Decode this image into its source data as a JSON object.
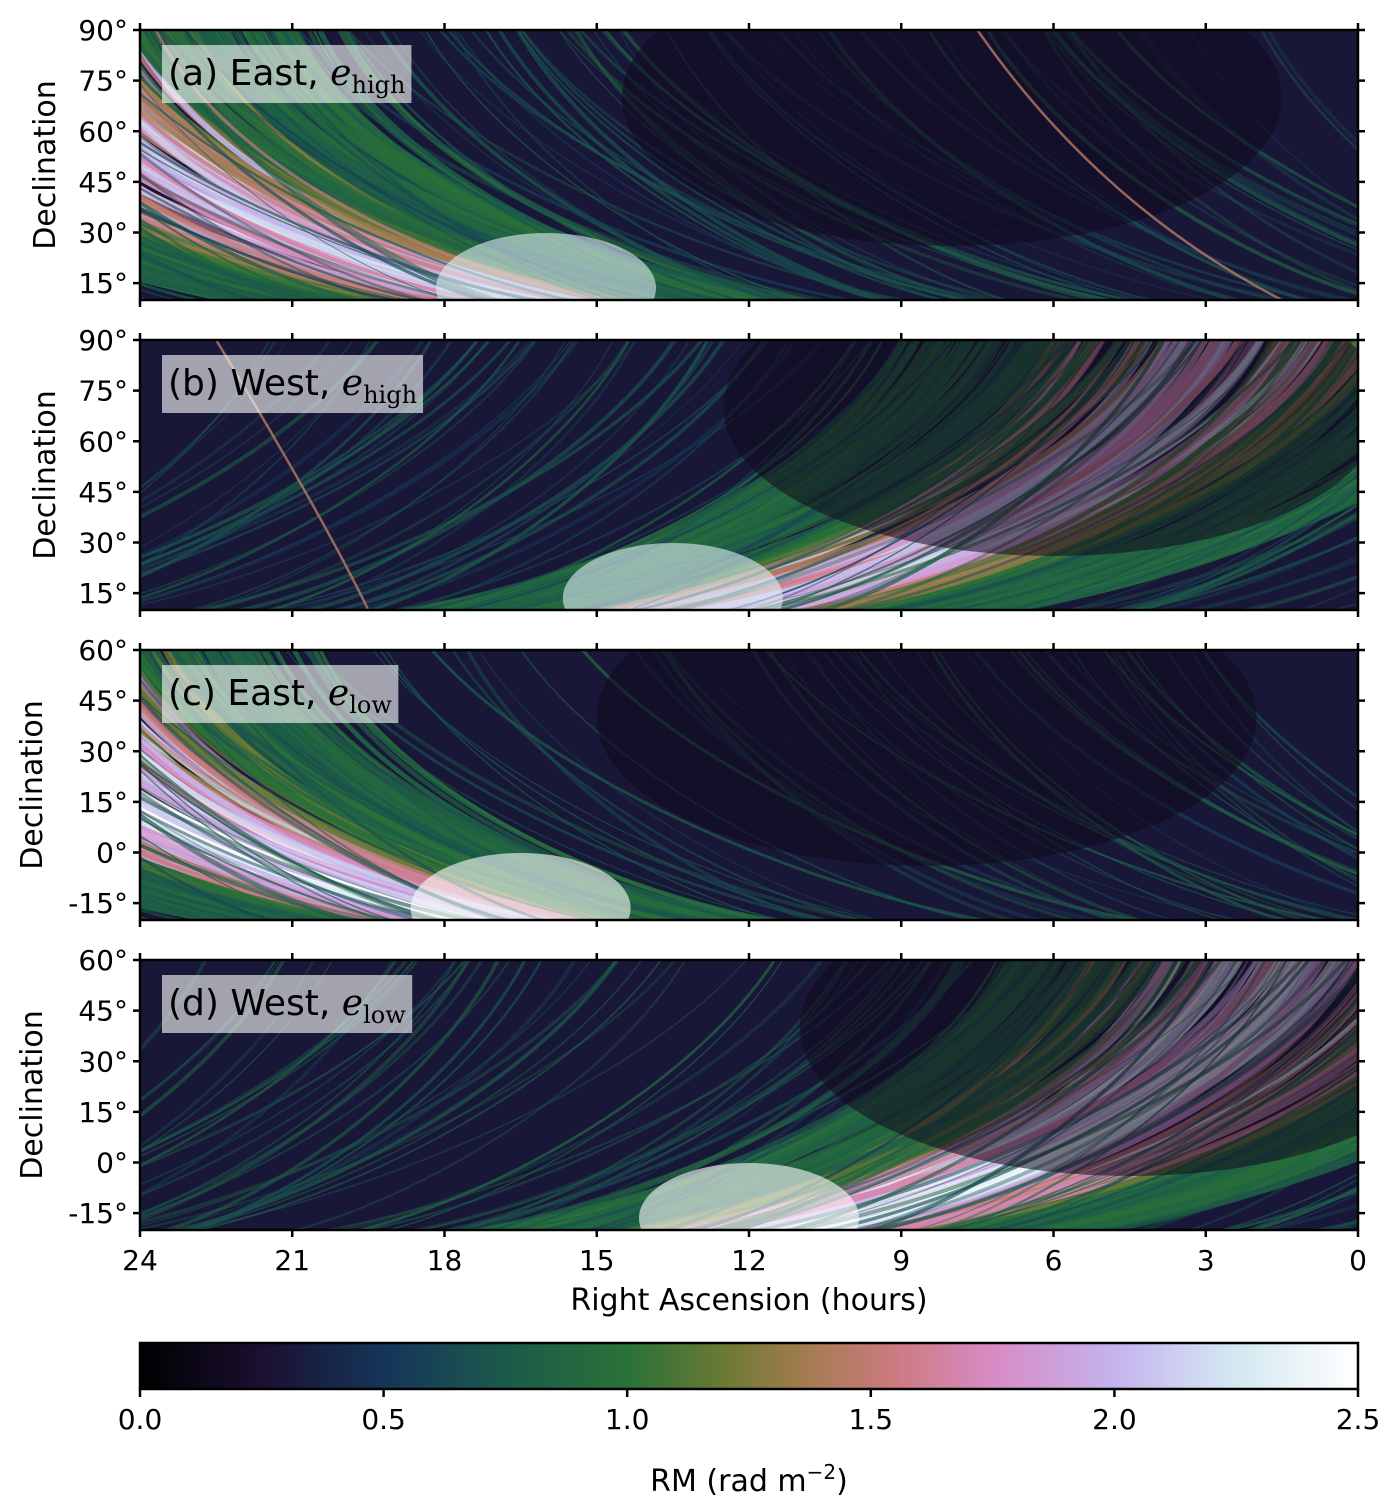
{
  "chart_data": [
    {
      "type": "heatmap",
      "panel": "a",
      "title_prefix": "(a) East, ",
      "title_var": "e",
      "title_sub": "high",
      "ylabel": "Declination",
      "ylim": [
        10,
        90
      ],
      "yticks": [
        15,
        30,
        45,
        60,
        75,
        90
      ],
      "ytick_labels": [
        "15°",
        "30°",
        "45°",
        "60°",
        "75°",
        "90°"
      ],
      "xlim": [
        24,
        0
      ],
      "xticks": [
        24,
        21,
        18,
        15,
        12,
        9,
        6,
        3,
        0
      ],
      "direction": "east",
      "peak": {
        "ra_hours": 16.0,
        "dec_deg": 10,
        "rm": 2.2
      },
      "secondary_streak": {
        "from_ra": 7.5,
        "to_ra": 1.5
      }
    },
    {
      "type": "heatmap",
      "panel": "b",
      "title_prefix": "(b) West, ",
      "title_var": "e",
      "title_sub": "high",
      "ylabel": "Declination",
      "ylim": [
        10,
        90
      ],
      "yticks": [
        15,
        30,
        45,
        60,
        75,
        90
      ],
      "ytick_labels": [
        "15°",
        "30°",
        "45°",
        "60°",
        "75°",
        "90°"
      ],
      "xlim": [
        24,
        0
      ],
      "xticks": [
        24,
        21,
        18,
        15,
        12,
        9,
        6,
        3,
        0
      ],
      "direction": "west",
      "peak": {
        "ra_hours": 13.5,
        "dec_deg": 10,
        "rm": 2.2
      },
      "secondary_streak": {
        "from_ra": 22.5,
        "to_ra": 19.5
      }
    },
    {
      "type": "heatmap",
      "panel": "c",
      "title_prefix": "(c) East, ",
      "title_var": "e",
      "title_sub": "low",
      "ylabel": "Declination",
      "ylim": [
        -20,
        60
      ],
      "yticks": [
        -15,
        0,
        15,
        30,
        45,
        60
      ],
      "ytick_labels": [
        "-15°",
        "0°",
        "15°",
        "30°",
        "45°",
        "60°"
      ],
      "xlim": [
        24,
        0
      ],
      "xticks": [
        24,
        21,
        18,
        15,
        12,
        9,
        6,
        3,
        0
      ],
      "direction": "east",
      "peak": {
        "ra_hours": 16.5,
        "dec_deg": -20,
        "rm": 2.5
      }
    },
    {
      "type": "heatmap",
      "panel": "d",
      "title_prefix": "(d) West, ",
      "title_var": "e",
      "title_sub": "low",
      "ylabel": "Declination",
      "ylim": [
        -20,
        60
      ],
      "yticks": [
        -15,
        0,
        15,
        30,
        45,
        60
      ],
      "ytick_labels": [
        "-15°",
        "0°",
        "15°",
        "30°",
        "45°",
        "60°"
      ],
      "xlim": [
        24,
        0
      ],
      "xticks": [
        24,
        21,
        18,
        15,
        12,
        9,
        6,
        3,
        0
      ],
      "xtick_labels": [
        "24",
        "21",
        "18",
        "15",
        "12",
        "9",
        "6",
        "3",
        "0"
      ],
      "xlabel": "Right Ascension (hours)",
      "direction": "west",
      "peak": {
        "ra_hours": 12.0,
        "dec_deg": -20,
        "rm": 2.5
      }
    }
  ],
  "colorbar": {
    "label_prefix": "RM (rad m",
    "label_sup": "−2",
    "label_suffix": ")",
    "range": [
      0.0,
      2.5
    ],
    "ticks": [
      0.0,
      0.5,
      1.0,
      1.5,
      2.0,
      2.5
    ],
    "tick_labels": [
      "0.0",
      "0.5",
      "1.0",
      "1.5",
      "2.0",
      "2.5"
    ],
    "colormap": "cubehelix",
    "stops": [
      [
        0.0,
        "#000000"
      ],
      [
        0.1,
        "#1a1030"
      ],
      [
        0.2,
        "#163559"
      ],
      [
        0.3,
        "#1b5a4b"
      ],
      [
        0.4,
        "#2a7138"
      ],
      [
        0.48,
        "#6b7a33"
      ],
      [
        0.55,
        "#a67c52"
      ],
      [
        0.62,
        "#cc7a80"
      ],
      [
        0.7,
        "#d88bc4"
      ],
      [
        0.8,
        "#c4b3ee"
      ],
      [
        0.9,
        "#d4e8f0"
      ],
      [
        1.0,
        "#ffffff"
      ]
    ]
  }
}
